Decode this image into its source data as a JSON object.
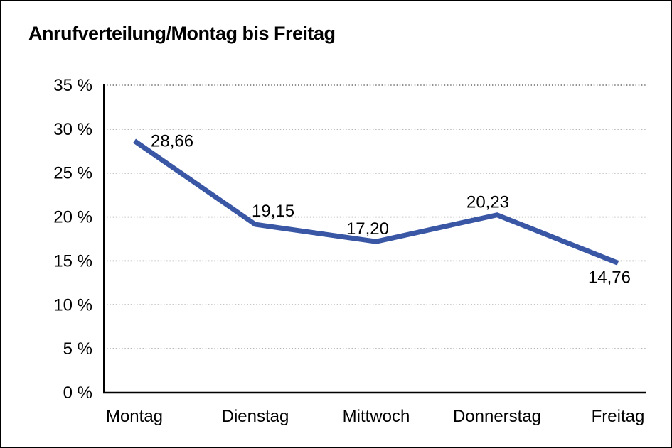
{
  "chart_data": {
    "type": "line",
    "title": "Anrufverteilung/Montag bis Freitag",
    "categories": [
      "Montag",
      "Dienstag",
      "Mittwoch",
      "Donnerstag",
      "Freitag"
    ],
    "values": [
      28.66,
      19.15,
      17.2,
      20.23,
      14.76
    ],
    "data_labels": [
      "28,66",
      "19,15",
      "17,20",
      "20,23",
      "14,76"
    ],
    "xlabel": "",
    "ylabel": "",
    "ylim": [
      0,
      35
    ],
    "ytick_step": 5,
    "ytick_suffix": " %",
    "ytick_labels": [
      "0 %",
      "5 %",
      "10 %",
      "15 %",
      "20 %",
      "25 %",
      "30 %",
      "35 %"
    ],
    "grid": "horizontal-dotted",
    "legend": "none",
    "line_color": "#3A57A6",
    "axis_color": "#000000",
    "grid_color": "#6b6b6b",
    "text_color": "#000000",
    "background": "#FFFFFF",
    "border_color": "#000000"
  }
}
